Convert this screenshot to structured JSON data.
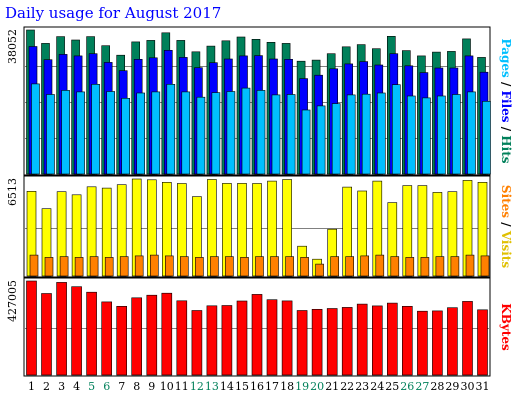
{
  "chart_data": {
    "type": "bar",
    "title": "Daily usage for August 2017",
    "title_color": "#0000ff",
    "days": [
      "1",
      "2",
      "3",
      "4",
      "5",
      "6",
      "7",
      "8",
      "9",
      "10",
      "11",
      "12",
      "13",
      "14",
      "15",
      "16",
      "17",
      "18",
      "19",
      "20",
      "21",
      "22",
      "23",
      "24",
      "25",
      "26",
      "27",
      "28",
      "29",
      "30",
      "31"
    ],
    "weekend_days": [
      "5",
      "6",
      "12",
      "13",
      "19",
      "20",
      "26",
      "27"
    ],
    "day_color": "#000000",
    "weekend_color": "#00805a",
    "grid": true,
    "panels": [
      {
        "id": "hits-files-pages",
        "max_label": "38052",
        "ymax": 38052,
        "axis_labels": [
          {
            "text": "Pages",
            "color": "#00bfff"
          },
          {
            "text": " / ",
            "color": "#000000"
          },
          {
            "text": "Files",
            "color": "#0000ff"
          },
          {
            "text": " / ",
            "color": "#000000"
          },
          {
            "text": "Hits",
            "color": "#00805a"
          }
        ],
        "series": [
          {
            "name": "Hits",
            "color": "#00805a",
            "values": [
              38052,
              34500,
              36300,
              35400,
              36300,
              33900,
              31400,
              34900,
              35300,
              37300,
              35300,
              32300,
              33800,
              35200,
              36200,
              35600,
              34800,
              34500,
              29800,
              30100,
              31800,
              33600,
              34200,
              33100,
              36400,
              32600,
              31200,
              32200,
              32400,
              35700,
              30800
            ]
          },
          {
            "name": "Files",
            "color": "#0000ff",
            "values": [
              33700,
              30200,
              31600,
              31200,
              31800,
              29500,
              27300,
              30300,
              30700,
              32700,
              30800,
              28100,
              29400,
              30400,
              31200,
              31300,
              30400,
              30300,
              25200,
              26100,
              27800,
              29100,
              29700,
              28800,
              31800,
              28600,
              26800,
              28000,
              28000,
              31200,
              26900
            ]
          },
          {
            "name": "Pages",
            "color": "#00bfff",
            "values": [
              23800,
              21000,
              22100,
              21700,
              23700,
              21800,
              20000,
              21400,
              21700,
              23700,
              21700,
              20300,
              21500,
              21800,
              22700,
              22100,
              20900,
              21000,
              16900,
              18000,
              18600,
              20900,
              21100,
              21400,
              23600,
              20600,
              20100,
              20600,
              21000,
              21700,
              19200
            ]
          }
        ]
      },
      {
        "id": "visits-sites",
        "max_label": "6513",
        "ymax": 6513,
        "axis_labels": [
          {
            "text": "Sites",
            "color": "#ff8000"
          },
          {
            "text": " / ",
            "color": "#000000"
          },
          {
            "text": "Visits",
            "color": "#e0c000"
          }
        ],
        "series": [
          {
            "name": "Visits",
            "color": "#ffff00",
            "values": [
              5690,
              4520,
              5660,
              5450,
              5990,
              5900,
              6130,
              6510,
              6460,
              6290,
              6210,
              5330,
              6480,
              6220,
              6220,
              6210,
              6370,
              6480,
              2000,
              1130,
              3140,
              5970,
              5710,
              6370,
              4930,
              6070,
              6070,
              5610,
              5660,
              6420,
              6290
            ]
          },
          {
            "name": "Sites",
            "color": "#ff8000",
            "values": [
              1400,
              1250,
              1300,
              1250,
              1300,
              1250,
              1300,
              1350,
              1400,
              1350,
              1300,
              1250,
              1300,
              1300,
              1250,
              1300,
              1300,
              1300,
              1250,
              800,
              1300,
              1300,
              1350,
              1400,
              1300,
              1250,
              1250,
              1300,
              1300,
              1400,
              1350
            ]
          }
        ]
      },
      {
        "id": "kbytes",
        "max_label": "427005",
        "ymax": 427005,
        "axis_labels": [
          {
            "text": "KBytes",
            "color": "#ff0000"
          }
        ],
        "series": [
          {
            "name": "KBytes",
            "color": "#ff0000",
            "values": [
              427005,
              370300,
              420800,
              401200,
              376000,
              332200,
              312200,
              350700,
              362700,
              371400,
              337200,
              292800,
              314200,
              315500,
              336100,
              366200,
              342100,
              336400,
              292800,
              298400,
              302100,
              306900,
              322100,
              313800,
              326400,
              311900,
              290000,
              291300,
              305600,
              334300,
              296300
            ]
          }
        ]
      }
    ]
  }
}
